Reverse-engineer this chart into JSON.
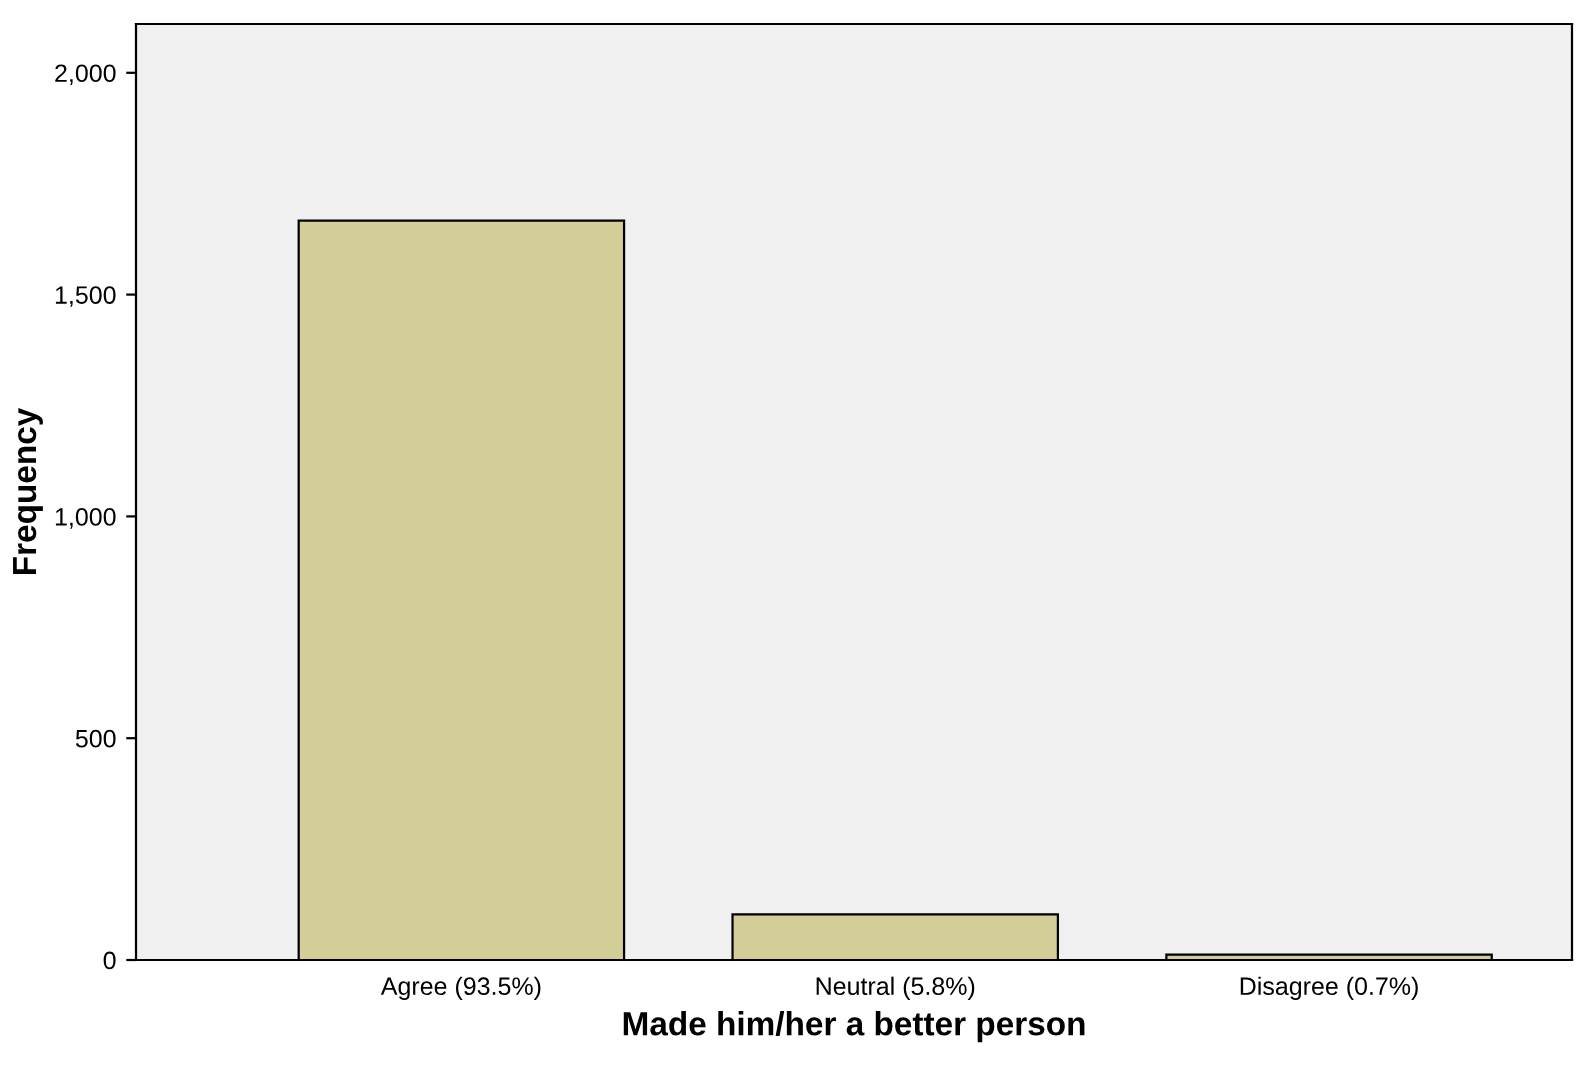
{
  "chart_data": {
    "type": "bar",
    "xlabel": "Made him/her a better person",
    "ylabel": "Frequency",
    "categories": [
      "Agree (93.5%)",
      "Neutral (5.8%)",
      "Disagree (0.7%)"
    ],
    "values": [
      1667,
      103,
      12
    ],
    "color": "#d3ce97",
    "ylim": [
      0,
      2110
    ],
    "yticks": [
      0,
      {
        "value": 500,
        "label": "500"
      },
      {
        "value": 1000,
        "label": "1,000"
      },
      {
        "value": 1500,
        "label": "1,500"
      },
      {
        "value": 2000,
        "label": "2,000"
      }
    ],
    "grid": false,
    "legend": false
  }
}
